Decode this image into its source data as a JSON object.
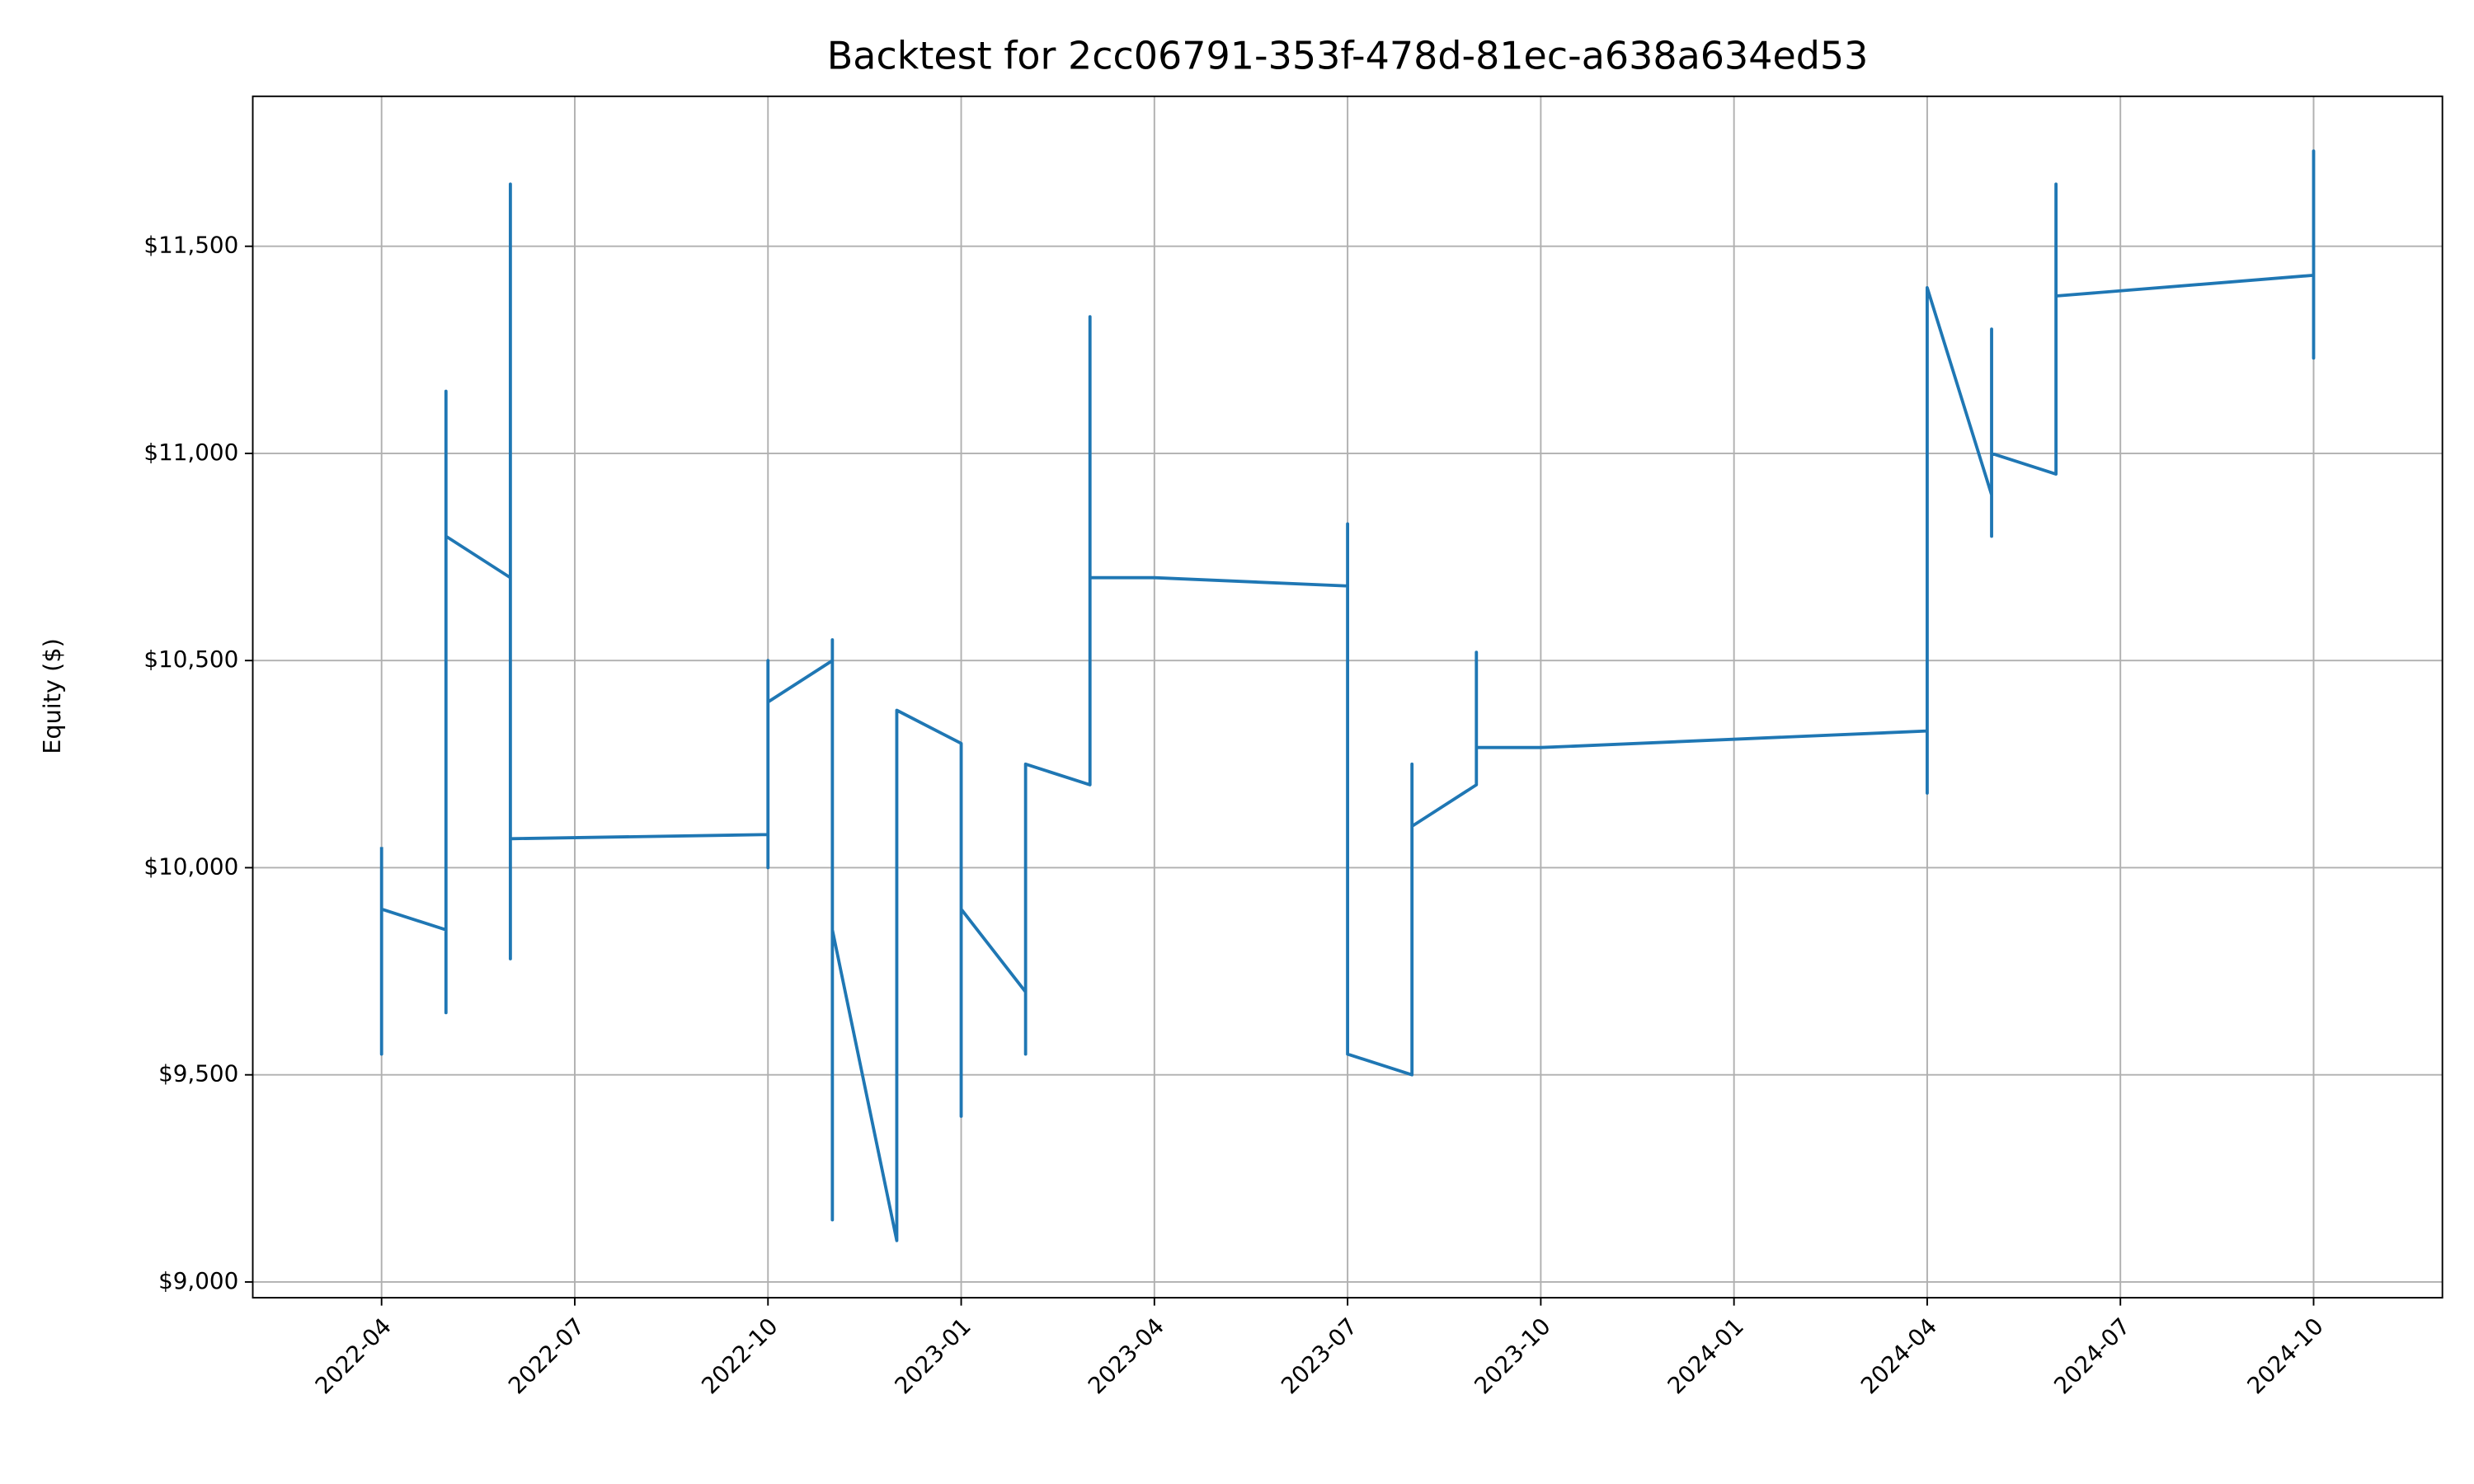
{
  "chart_data": {
    "type": "line",
    "title": "Backtest for 2cc06791-353f-478d-81ec-a638a634ed53",
    "ylabel": "Equity ($)",
    "color": "#1f77b4",
    "grid": true,
    "x": [
      "2022-04",
      "2022-04",
      "2022-04",
      "2022-04",
      "2022-04",
      "2022-05",
      "2022-05",
      "2022-05",
      "2022-05",
      "2022-05",
      "2022-05",
      "2022-05",
      "2022-06",
      "2022-06",
      "2022-06",
      "2022-06",
      "2022-06",
      "2022-06",
      "2022-06",
      "2022-06",
      "2022-06",
      "2022-10",
      "2022-10",
      "2022-10",
      "2022-10",
      "2022-10",
      "2022-11",
      "2022-11",
      "2022-11",
      "2022-11",
      "2022-11",
      "2022-11",
      "2022-11",
      "2022-12",
      "2022-12",
      "2022-12",
      "2022-12",
      "2022-12",
      "2022-12",
      "2022-12",
      "2023-01",
      "2023-01",
      "2023-01",
      "2023-01",
      "2023-01",
      "2023-01",
      "2023-02",
      "2023-02",
      "2023-02",
      "2023-02",
      "2023-02",
      "2023-02",
      "2023-03",
      "2023-03",
      "2023-03",
      "2023-03",
      "2023-03",
      "2023-03",
      "2023-04",
      "2023-07",
      "2023-07",
      "2023-07",
      "2023-07",
      "2023-07",
      "2023-07",
      "2023-08",
      "2023-08",
      "2023-08",
      "2023-08",
      "2023-08",
      "2023-09",
      "2023-09",
      "2023-09",
      "2023-09",
      "2023-09",
      "2023-10",
      "2024-04",
      "2024-04",
      "2024-04",
      "2024-04",
      "2024-04",
      "2024-04",
      "2024-05",
      "2024-05",
      "2024-05",
      "2024-05",
      "2024-05",
      "2024-06",
      "2024-06",
      "2024-06",
      "2024-06",
      "2024-06",
      "2024-06",
      "2024-06",
      "2024-10",
      "2024-10",
      "2024-10",
      "2024-10",
      "2024-10",
      "2024-10"
    ],
    "values": [
      10050,
      9550,
      10000,
      9700,
      9900,
      9850,
      10400,
      9650,
      10200,
      11150,
      10500,
      10800,
      10700,
      11350,
      10900,
      11650,
      11200,
      10250,
      10700,
      9780,
      10070,
      10080,
      10350,
      10000,
      10500,
      10400,
      10500,
      9300,
      10550,
      9150,
      9700,
      9500,
      9850,
      9100,
      9400,
      9250,
      9700,
      10250,
      9800,
      10380,
      10300,
      9800,
      9400,
      10100,
      9600,
      9900,
      9700,
      10150,
      9550,
      10100,
      9900,
      10250,
      10200,
      10650,
      11330,
      10700,
      11000,
      10700,
      10700,
      10680,
      10830,
      10600,
      9550,
      9750,
      9550,
      9500,
      9950,
      9850,
      10250,
      10100,
      10200,
      10520,
      10300,
      10400,
      10290,
      10290,
      10330,
      10180,
      10650,
      10350,
      11050,
      11400,
      10900,
      11300,
      10800,
      11100,
      11000,
      10950,
      11450,
      11400,
      11650,
      11350,
      11500,
      11380,
      11430,
      11230,
      11730,
      11550,
      11700,
      11620
    ],
    "xlim": [
      "2022-02",
      "2024-12"
    ],
    "xticks": [
      "2022-04",
      "2022-07",
      "2022-10",
      "2023-01",
      "2023-04",
      "2023-07",
      "2023-10",
      "2024-01",
      "2024-04",
      "2024-07",
      "2024-10"
    ],
    "ylim": [
      8962,
      11862
    ],
    "yticks": [
      {
        "value": 9000,
        "label": "$9,000"
      },
      {
        "value": 9500,
        "label": "$9,500"
      },
      {
        "value": 10000,
        "label": "$10,000"
      },
      {
        "value": 10500,
        "label": "$10,500"
      },
      {
        "value": 11000,
        "label": "$11,000"
      },
      {
        "value": 11500,
        "label": "$11,500"
      }
    ]
  }
}
